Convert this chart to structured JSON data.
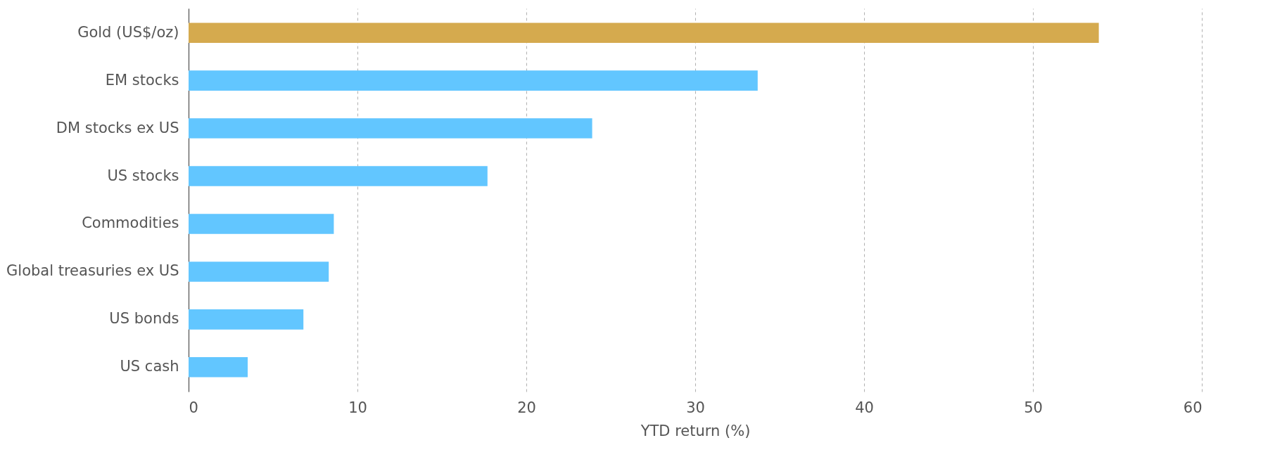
{
  "chart_data": {
    "type": "bar",
    "orientation": "horizontal",
    "xlabel": "YTD return (%)",
    "categories": [
      "Gold (US$/oz)",
      "EM stocks",
      "DM stocks ex US",
      "US stocks",
      "Commodities",
      "Global treasuries ex US",
      "US bonds",
      "US cash"
    ],
    "values": [
      53.9,
      33.7,
      23.9,
      17.7,
      8.6,
      8.3,
      6.8,
      3.5
    ],
    "colors": [
      "#d5aa4e",
      "#62c6ff",
      "#62c6ff",
      "#62c6ff",
      "#62c6ff",
      "#62c6ff",
      "#62c6ff",
      "#62c6ff"
    ],
    "xlim": [
      0,
      60
    ],
    "xticks": [
      0,
      10,
      20,
      30,
      40,
      50,
      60
    ],
    "grid": "x"
  }
}
